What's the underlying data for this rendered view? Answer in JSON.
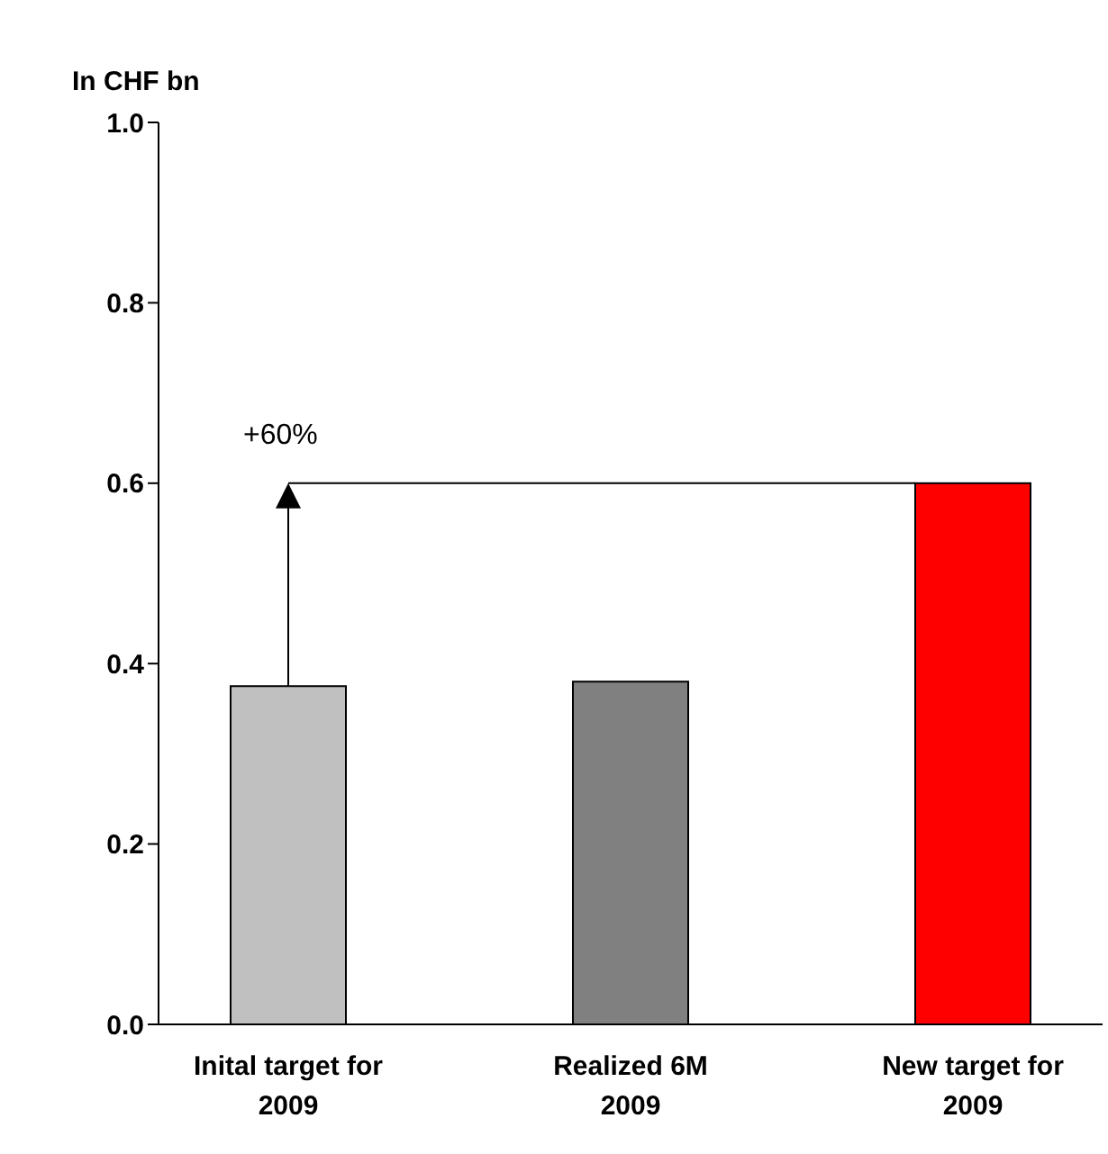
{
  "chart_data": {
    "type": "bar",
    "ylabel": "In CHF bn",
    "categories": [
      "Inital target for 2009",
      "Realized 6M 2009",
      "New target for 2009"
    ],
    "values": [
      0.375,
      0.38,
      0.6
    ],
    "colors": [
      "#c0c0c0",
      "#808080",
      "#ff0000"
    ],
    "ylim": [
      0,
      1
    ],
    "yticks": [
      {
        "value": 0,
        "label": "0.0"
      },
      {
        "value": 0.2,
        "label": "0.2"
      },
      {
        "value": 0.4,
        "label": "0.4"
      },
      {
        "value": 0.6,
        "label": "0.6"
      },
      {
        "value": 0.8,
        "label": "0.8"
      },
      {
        "value": 1,
        "label": "1.0"
      }
    ],
    "ref_lines": [
      {
        "axis": "y",
        "value": 0.6,
        "color": "#000000"
      }
    ],
    "annotations": [
      {
        "text": "+60%",
        "x": "Inital target for 2009",
        "y": 0.6
      }
    ],
    "grid": false
  }
}
